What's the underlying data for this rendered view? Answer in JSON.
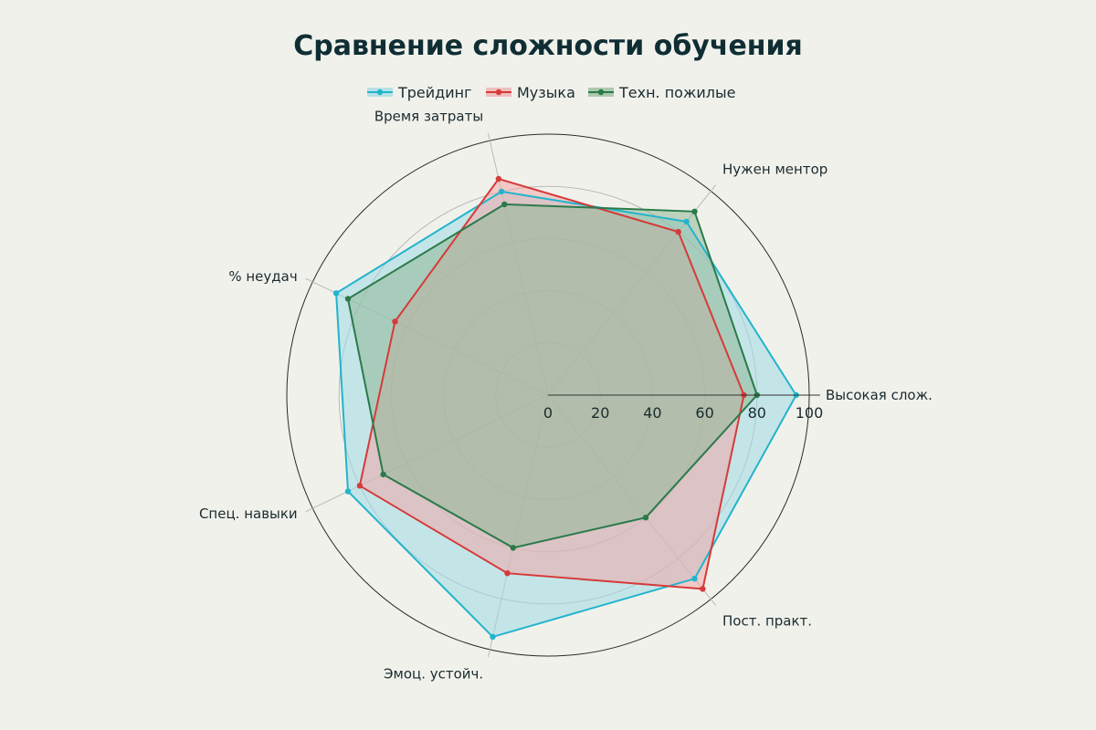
{
  "chart_data": {
    "type": "radar",
    "title": "Сравнение сложности обучения",
    "axes": [
      "Высокая слож.",
      "Нужен ментор",
      "Время затраты",
      "% неудач",
      "Спец. навыки",
      "Эмоц. устойч.",
      "Пост. практ."
    ],
    "rlim": [
      0,
      100
    ],
    "ticks": [
      0,
      20,
      40,
      60,
      80,
      100
    ],
    "legend_position": "top-center",
    "series": [
      {
        "name": "Трейдинг",
        "color": "#22b4cc",
        "fill": "#9fdae6",
        "values": [
          95,
          85,
          80,
          90,
          85,
          95,
          90
        ]
      },
      {
        "name": "Музыка",
        "color": "#d63a3a",
        "fill": "#f0a8a8",
        "values": [
          75,
          80,
          85,
          65,
          80,
          70,
          95
        ]
      },
      {
        "name": "Техн. пожилые",
        "color": "#2a7a4a",
        "fill": "#8fb896",
        "values": [
          80,
          90,
          75,
          85,
          70,
          60,
          60
        ]
      }
    ]
  }
}
